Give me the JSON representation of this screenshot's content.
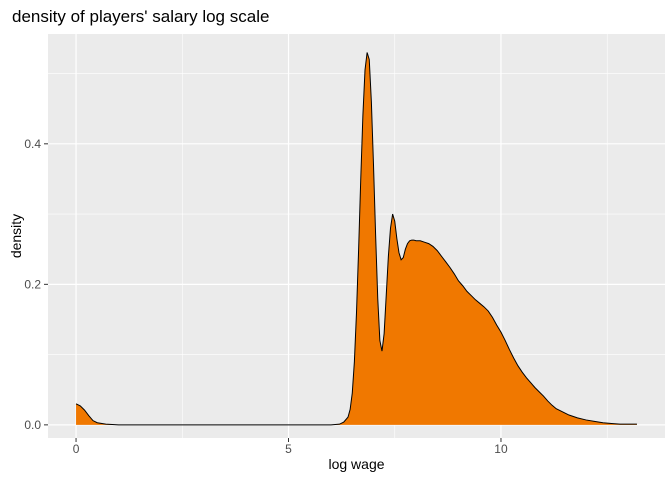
{
  "chart_data": {
    "type": "area",
    "title": "density of players' salary log scale",
    "xlabel": "log wage",
    "ylabel": "density",
    "xlim": [
      -0.66,
      13.86
    ],
    "ylim": [
      -0.0187,
      0.5563
    ],
    "x_ticks": [
      0,
      5,
      10
    ],
    "x_tick_labels": [
      "0",
      "5",
      "10"
    ],
    "y_ticks": [
      0.0,
      0.2,
      0.4
    ],
    "y_tick_labels": [
      "0.0",
      "0.2",
      "0.4"
    ],
    "x_minor": [
      2.5,
      7.5,
      12.5
    ],
    "y_minor": [
      0.1,
      0.3,
      0.5
    ],
    "grid": true,
    "legend": "none",
    "fill_color": "#F07800",
    "line_color": "#000000",
    "panel_background": "#EBEBEB",
    "grid_color": "#FFFFFF",
    "x": [
      0.0,
      0.1,
      0.2,
      0.3,
      0.4,
      0.5,
      0.7,
      1.0,
      2.0,
      3.0,
      4.0,
      5.0,
      6.0,
      6.2,
      6.3,
      6.4,
      6.45,
      6.5,
      6.55,
      6.6,
      6.65,
      6.7,
      6.75,
      6.8,
      6.85,
      6.9,
      6.95,
      7.0,
      7.05,
      7.1,
      7.15,
      7.2,
      7.25,
      7.3,
      7.35,
      7.4,
      7.45,
      7.5,
      7.55,
      7.6,
      7.65,
      7.7,
      7.75,
      7.8,
      7.85,
      7.9,
      7.95,
      8.0,
      8.1,
      8.2,
      8.3,
      8.4,
      8.5,
      8.6,
      8.7,
      8.8,
      8.9,
      9.0,
      9.1,
      9.2,
      9.3,
      9.4,
      9.5,
      9.6,
      9.7,
      9.8,
      9.9,
      10.0,
      10.1,
      10.2,
      10.3,
      10.4,
      10.5,
      10.6,
      10.7,
      10.8,
      10.9,
      11.0,
      11.1,
      11.2,
      11.3,
      11.4,
      11.5,
      11.6,
      11.8,
      12.0,
      12.2,
      12.4,
      12.6,
      12.8,
      13.0,
      13.2
    ],
    "y": [
      0.03,
      0.027,
      0.021,
      0.013,
      0.006,
      0.003,
      0.001,
      0.0,
      0.0,
      0.0,
      0.0,
      0.0,
      0.0,
      0.001,
      0.004,
      0.011,
      0.022,
      0.045,
      0.09,
      0.16,
      0.25,
      0.35,
      0.44,
      0.505,
      0.53,
      0.52,
      0.46,
      0.37,
      0.27,
      0.18,
      0.12,
      0.105,
      0.13,
      0.185,
      0.24,
      0.28,
      0.3,
      0.29,
      0.265,
      0.245,
      0.235,
      0.238,
      0.25,
      0.258,
      0.262,
      0.263,
      0.263,
      0.262,
      0.262,
      0.26,
      0.258,
      0.254,
      0.248,
      0.24,
      0.232,
      0.224,
      0.215,
      0.205,
      0.198,
      0.19,
      0.184,
      0.178,
      0.173,
      0.168,
      0.162,
      0.153,
      0.142,
      0.132,
      0.12,
      0.107,
      0.095,
      0.084,
      0.075,
      0.067,
      0.06,
      0.053,
      0.047,
      0.041,
      0.034,
      0.028,
      0.023,
      0.02,
      0.017,
      0.014,
      0.01,
      0.007,
      0.005,
      0.003,
      0.002,
      0.001,
      0.001,
      0.001
    ]
  }
}
